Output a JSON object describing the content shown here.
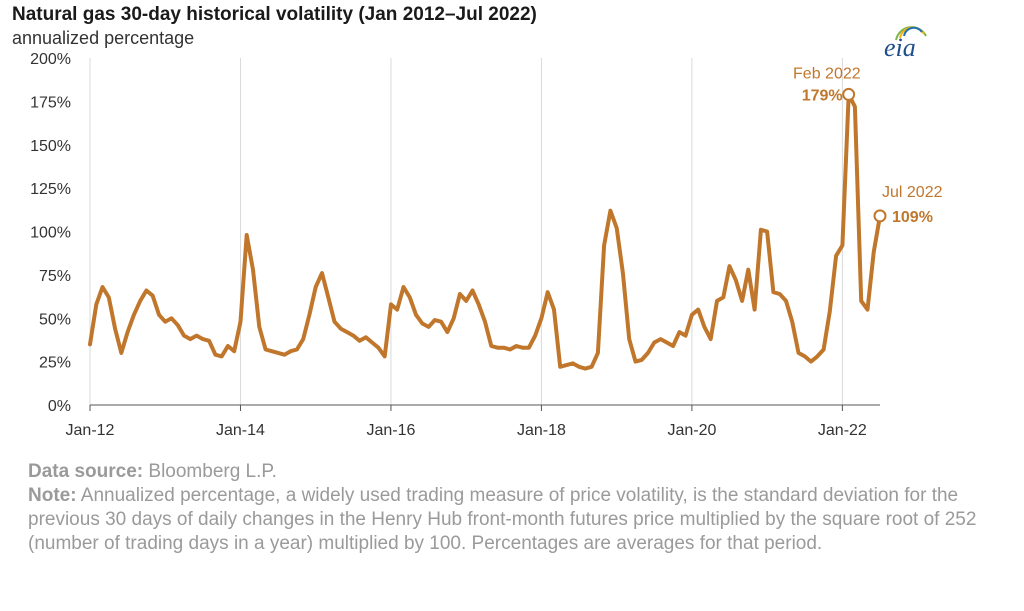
{
  "header": {
    "title": "Natural gas 30-day historical volatility (Jan 2012–Jul 2022)",
    "subtitle": "annualized percentage"
  },
  "logo": {
    "text": "eia",
    "icon": "eia-logo-icon"
  },
  "footer": {
    "source_label": "Data source:",
    "source_text": "Bloomberg L.P.",
    "note_label": "Note:",
    "note_text": "Annualized percentage, a widely used trading measure of price volatility, is the standard deviation for the previous 30 days of daily changes in the Henry Hub front-month futures price multiplied by the square root of 252 (number of trading days in a year) multiplied by 100. Percentages are averages for that period."
  },
  "colors": {
    "series": "#c0772c",
    "grid": "#d9d9d9",
    "axis": "#555555"
  },
  "chart_data": {
    "type": "line",
    "title": "Natural gas 30-day historical volatility (Jan 2012–Jul 2022)",
    "subtitle": "annualized percentage",
    "xlabel": "",
    "ylabel": "",
    "x_ticks": [
      "Jan-12",
      "Jan-14",
      "Jan-16",
      "Jan-18",
      "Jan-20",
      "Jan-22"
    ],
    "y_ticks": [
      "0%",
      "25%",
      "50%",
      "75%",
      "100%",
      "125%",
      "150%",
      "175%",
      "200%"
    ],
    "ylim": [
      0,
      200
    ],
    "xlim": [
      "2012-01",
      "2022-07"
    ],
    "grid": "vertical",
    "annotations": [
      {
        "label": "Feb 2022",
        "value": "179%",
        "x": "2022-02",
        "y": 179
      },
      {
        "label": "Jul 2022",
        "value": "109%",
        "x": "2022-07",
        "y": 109
      }
    ],
    "series": [
      {
        "points": [
          [
            "2012-01",
            35
          ],
          [
            "2012-02",
            58
          ],
          [
            "2012-03",
            68
          ],
          [
            "2012-04",
            62
          ],
          [
            "2012-05",
            44
          ],
          [
            "2012-06",
            30
          ],
          [
            "2012-07",
            42
          ],
          [
            "2012-08",
            52
          ],
          [
            "2012-09",
            60
          ],
          [
            "2012-10",
            66
          ],
          [
            "2012-11",
            63
          ],
          [
            "2012-12",
            52
          ],
          [
            "2013-01",
            48
          ],
          [
            "2013-02",
            50
          ],
          [
            "2013-03",
            46
          ],
          [
            "2013-04",
            40
          ],
          [
            "2013-05",
            38
          ],
          [
            "2013-06",
            40
          ],
          [
            "2013-07",
            38
          ],
          [
            "2013-08",
            37
          ],
          [
            "2013-09",
            29
          ],
          [
            "2013-10",
            28
          ],
          [
            "2013-11",
            34
          ],
          [
            "2013-12",
            31
          ],
          [
            "2014-01",
            48
          ],
          [
            "2014-02",
            98
          ],
          [
            "2014-03",
            78
          ],
          [
            "2014-04",
            45
          ],
          [
            "2014-05",
            32
          ],
          [
            "2014-06",
            31
          ],
          [
            "2014-07",
            30
          ],
          [
            "2014-08",
            29
          ],
          [
            "2014-09",
            31
          ],
          [
            "2014-10",
            32
          ],
          [
            "2014-11",
            38
          ],
          [
            "2014-12",
            52
          ],
          [
            "2015-01",
            68
          ],
          [
            "2015-02",
            76
          ],
          [
            "2015-03",
            62
          ],
          [
            "2015-04",
            48
          ],
          [
            "2015-05",
            44
          ],
          [
            "2015-06",
            42
          ],
          [
            "2015-07",
            40
          ],
          [
            "2015-08",
            37
          ],
          [
            "2015-09",
            39
          ],
          [
            "2015-10",
            36
          ],
          [
            "2015-11",
            33
          ],
          [
            "2015-12",
            28
          ],
          [
            "2016-01",
            58
          ],
          [
            "2016-02",
            55
          ],
          [
            "2016-03",
            68
          ],
          [
            "2016-04",
            62
          ],
          [
            "2016-05",
            52
          ],
          [
            "2016-06",
            47
          ],
          [
            "2016-07",
            45
          ],
          [
            "2016-08",
            49
          ],
          [
            "2016-09",
            48
          ],
          [
            "2016-10",
            42
          ],
          [
            "2016-11",
            50
          ],
          [
            "2016-12",
            64
          ],
          [
            "2017-01",
            60
          ],
          [
            "2017-02",
            66
          ],
          [
            "2017-03",
            58
          ],
          [
            "2017-04",
            48
          ],
          [
            "2017-05",
            34
          ],
          [
            "2017-06",
            33
          ],
          [
            "2017-07",
            33
          ],
          [
            "2017-08",
            32
          ],
          [
            "2017-09",
            34
          ],
          [
            "2017-10",
            33
          ],
          [
            "2017-11",
            33
          ],
          [
            "2017-12",
            40
          ],
          [
            "2018-01",
            50
          ],
          [
            "2018-02",
            65
          ],
          [
            "2018-03",
            55
          ],
          [
            "2018-04",
            22
          ],
          [
            "2018-05",
            23
          ],
          [
            "2018-06",
            24
          ],
          [
            "2018-07",
            22
          ],
          [
            "2018-08",
            21
          ],
          [
            "2018-09",
            22
          ],
          [
            "2018-10",
            30
          ],
          [
            "2018-11",
            92
          ],
          [
            "2018-12",
            112
          ],
          [
            "2019-01",
            102
          ],
          [
            "2019-02",
            76
          ],
          [
            "2019-03",
            38
          ],
          [
            "2019-04",
            25
          ],
          [
            "2019-05",
            26
          ],
          [
            "2019-06",
            30
          ],
          [
            "2019-07",
            36
          ],
          [
            "2019-08",
            38
          ],
          [
            "2019-09",
            36
          ],
          [
            "2019-10",
            34
          ],
          [
            "2019-11",
            42
          ],
          [
            "2019-12",
            40
          ],
          [
            "2020-01",
            52
          ],
          [
            "2020-02",
            55
          ],
          [
            "2020-03",
            45
          ],
          [
            "2020-04",
            38
          ],
          [
            "2020-05",
            60
          ],
          [
            "2020-06",
            62
          ],
          [
            "2020-07",
            80
          ],
          [
            "2020-08",
            72
          ],
          [
            "2020-09",
            60
          ],
          [
            "2020-10",
            78
          ],
          [
            "2020-11",
            55
          ],
          [
            "2020-12",
            101
          ],
          [
            "2021-01",
            100
          ],
          [
            "2021-02",
            65
          ],
          [
            "2021-03",
            64
          ],
          [
            "2021-04",
            60
          ],
          [
            "2021-05",
            48
          ],
          [
            "2021-06",
            30
          ],
          [
            "2021-07",
            28
          ],
          [
            "2021-08",
            25
          ],
          [
            "2021-09",
            28
          ],
          [
            "2021-10",
            32
          ],
          [
            "2021-11",
            54
          ],
          [
            "2021-12",
            86
          ],
          [
            "2022-01",
            92
          ],
          [
            "2022-02",
            179
          ],
          [
            "2022-03",
            172
          ],
          [
            "2022-04",
            60
          ],
          [
            "2022-05",
            55
          ],
          [
            "2022-06",
            88
          ],
          [
            "2022-07",
            109
          ]
        ]
      }
    ]
  }
}
